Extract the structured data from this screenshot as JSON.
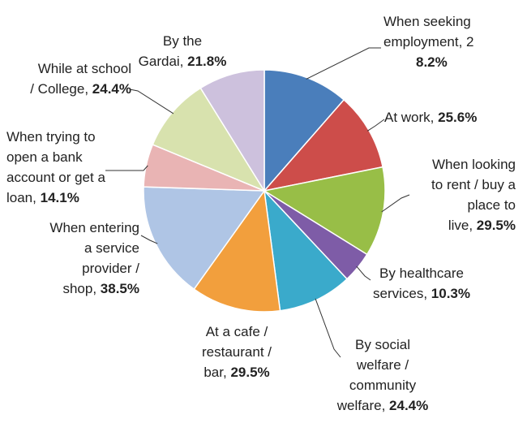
{
  "chart_data": {
    "type": "pie",
    "title": "",
    "start_angle_deg": 0,
    "direction": "clockwise",
    "slices": [
      {
        "name": "When seeking employment",
        "label_lines": [
          "When seeking",
          "employment, 2"
        ],
        "value_line": "8.2%",
        "value": 28.2,
        "color": "#4A7EBB"
      },
      {
        "name": "At work",
        "label_lines": [
          "At work,"
        ],
        "value_line": "25.6%",
        "value": 25.6,
        "color": "#CD4D4A"
      },
      {
        "name": "When looking to rent / buy a place to live",
        "label_lines": [
          "When looking",
          "to rent / buy a",
          "place to",
          "live,"
        ],
        "value_line": "29.5%",
        "value": 29.5,
        "color": "#98BE47"
      },
      {
        "name": "By healthcare services",
        "label_lines": [
          "By healthcare",
          "services,"
        ],
        "value_line": "10.3%",
        "value": 10.3,
        "color": "#7E5CA7"
      },
      {
        "name": "By social welfare / community welfare",
        "label_lines": [
          "By social",
          "welfare /",
          "community",
          "welfare,"
        ],
        "value_line": "24.4%",
        "value": 24.4,
        "color": "#3AAACB"
      },
      {
        "name": "At a cafe / restaurant / bar",
        "label_lines": [
          "At a cafe /",
          "restaurant /",
          "bar,"
        ],
        "value_line": "29.5%",
        "value": 29.5,
        "color": "#F29F3D"
      },
      {
        "name": "When entering a service provider / shop",
        "label_lines": [
          "When entering",
          "a service",
          "provider /",
          "shop,"
        ],
        "value_line": "38.5%",
        "value": 38.5,
        "color": "#AFC5E5"
      },
      {
        "name": "When trying to open a bank account or get a loan",
        "label_lines": [
          "When trying to",
          "open a bank",
          "account or get a",
          "loan,"
        ],
        "value_line": "14.1%",
        "value": 14.1,
        "color": "#E9B4B4"
      },
      {
        "name": "While at school / College",
        "label_lines": [
          "While at school",
          "/ College,"
        ],
        "value_line": "24.4%",
        "value": 24.4,
        "color": "#D8E2AE"
      },
      {
        "name": "By the Gardai",
        "label_lines": [
          "By the",
          "Gardai,"
        ],
        "value_line": "21.8%",
        "value": 21.8,
        "color": "#CDC1DD"
      }
    ]
  }
}
